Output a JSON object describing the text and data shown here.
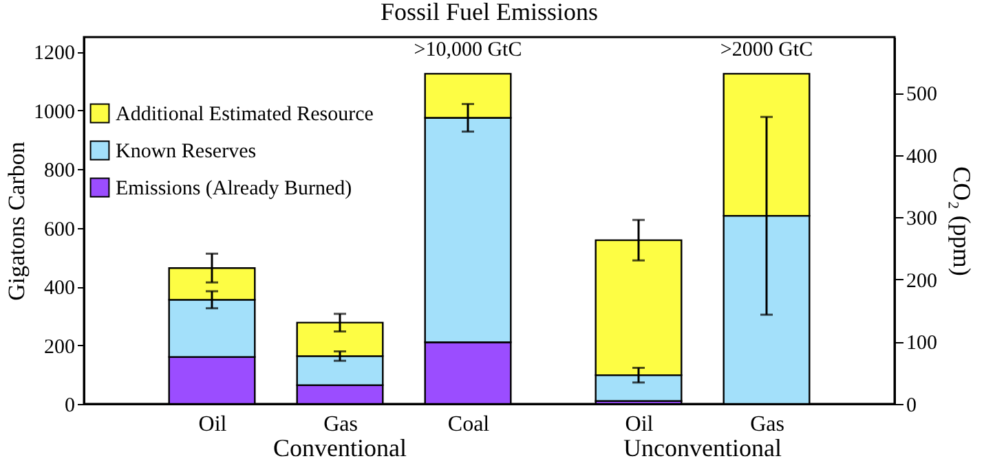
{
  "chart_data": {
    "type": "bar",
    "title": "Fossil Fuel Emissions",
    "ylabel": "Gigatons Carbon",
    "y2label": "CO₂ (ppm)",
    "categories": [
      "Oil",
      "Gas",
      "Coal",
      null,
      "Oil",
      "Gas"
    ],
    "stacked": true,
    "series": [
      {
        "name": "Emissions (Already Burned)",
        "color": "#9b4dff",
        "values": [
          160,
          64,
          210,
          null,
          10,
          null
        ]
      },
      {
        "name": "Known Reserves",
        "color": "#a3e0fa",
        "values": [
          195,
          99,
          765,
          null,
          88,
          641
        ],
        "errors": [
          29,
          16,
          47,
          null,
          25,
          337
        ]
      },
      {
        "name": "Additional Estimated Resource",
        "color": "#fdfd44",
        "values": [
          108,
          114,
          150,
          null,
          460,
          484
        ],
        "errors": [
          49,
          30,
          null,
          null,
          69,
          null
        ],
        "value_labels": [
          null,
          null,
          ">10,000 GtC",
          null,
          null,
          ">2000 GtC"
        ]
      }
    ],
    "annotations": [
      "Conventional",
      "Unconventional"
    ],
    "ylim": [
      0,
      1250
    ],
    "yticks": [
      0,
      200,
      400,
      600,
      800,
      1000,
      1200
    ],
    "y2lim": [
      0,
      590
    ],
    "y2ticks": [
      0,
      100,
      200,
      300,
      400,
      500
    ],
    "grid": false,
    "legend": "top left"
  }
}
